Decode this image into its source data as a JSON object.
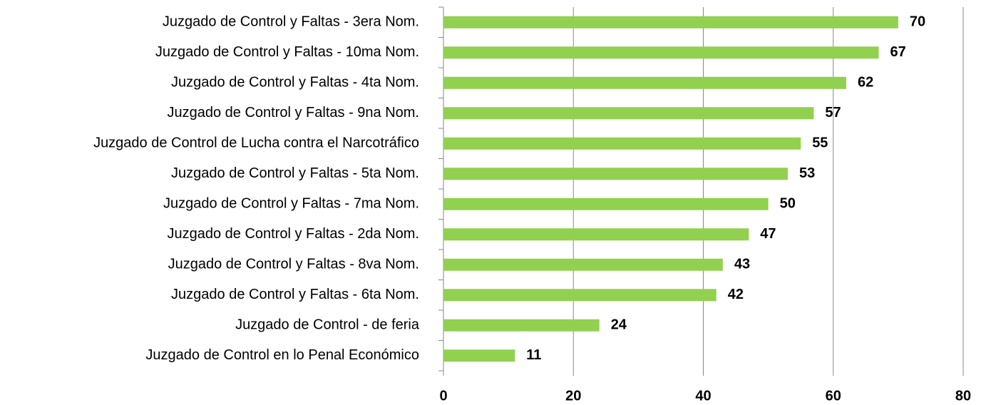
{
  "chart_data": {
    "type": "bar",
    "orientation": "horizontal",
    "categories": [
      "Juzgado de Control y Faltas - 3era Nom.",
      "Juzgado de Control y Faltas - 10ma Nom.",
      "Juzgado de Control y Faltas - 4ta Nom.",
      "Juzgado de Control y Faltas - 9na Nom.",
      "Juzgado de Control de Lucha contra el Narcotráfico",
      "Juzgado de Control y Faltas - 5ta Nom.",
      "Juzgado de Control y Faltas - 7ma Nom.",
      "Juzgado de Control y Faltas - 2da Nom.",
      "Juzgado de Control y Faltas - 8va Nom.",
      "Juzgado de Control y Faltas - 6ta Nom.",
      "Juzgado de Control - de feria",
      "Juzgado de Control en lo Penal Económico"
    ],
    "values": [
      70,
      67,
      62,
      57,
      55,
      53,
      50,
      47,
      43,
      42,
      24,
      11
    ],
    "color": "#92d050",
    "xlim": [
      0,
      80
    ],
    "xticks": [
      0,
      20,
      40,
      60,
      80
    ],
    "grid": true
  }
}
